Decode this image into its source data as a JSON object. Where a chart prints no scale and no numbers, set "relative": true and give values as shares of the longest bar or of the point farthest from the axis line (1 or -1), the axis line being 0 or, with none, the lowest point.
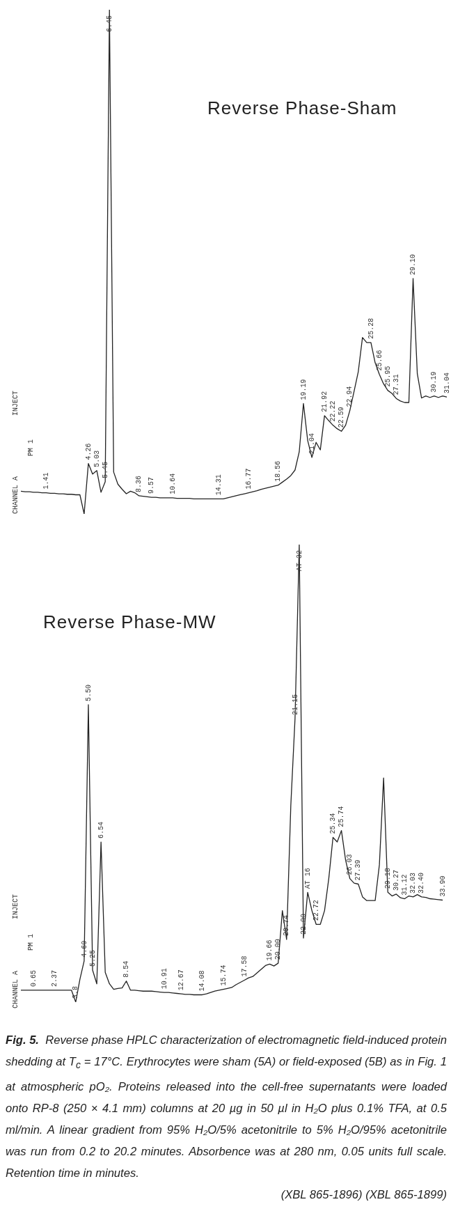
{
  "chart_data": [
    {
      "type": "line",
      "title": "Reverse Phase-Sham",
      "relative": true,
      "categories": [
        null,
        null,
        null,
        null,
        null,
        null,
        "1.41",
        null,
        null,
        null,
        null,
        null,
        null,
        null,
        null,
        null,
        "4.26",
        null,
        "5.03",
        null,
        "5.45",
        "6.45",
        null,
        null,
        null,
        null,
        null,
        null,
        "8.36",
        null,
        null,
        "9.57",
        null,
        null,
        null,
        null,
        "10.64",
        null,
        null,
        null,
        null,
        null,
        null,
        null,
        null,
        null,
        null,
        "14.31",
        null,
        null,
        null,
        null,
        null,
        null,
        "16.77",
        null,
        null,
        null,
        null,
        null,
        null,
        "18.56",
        null,
        null,
        null,
        null,
        null,
        "19.19",
        null,
        "21.04",
        null,
        null,
        "21.92",
        null,
        "22.22",
        null,
        "22.59",
        null,
        "22.94",
        null,
        null,
        null,
        null,
        "25.28",
        null,
        "25.66",
        null,
        "25.95",
        null,
        "27.31",
        null,
        null,
        null,
        "29.10",
        null,
        null,
        null,
        null,
        "30.19",
        null,
        null,
        "31.04"
      ],
      "series": [
        {
          "color": "#222222",
          "values": [
            0.045,
            0.044,
            0.044,
            0.043,
            0.043,
            0.042,
            0.042,
            0.041,
            0.041,
            0.04,
            0.04,
            0.039,
            0.039,
            0.038,
            0.038,
            0,
            0.1,
            0.079,
            0.086,
            0.043,
            0.064,
            1,
            0.083,
            0.059,
            0.049,
            0.04,
            0.045,
            0.042,
            0.036,
            0.035,
            0.034,
            0.033,
            0.033,
            0.032,
            0.032,
            0.032,
            0.032,
            0.031,
            0.031,
            0.031,
            0.031,
            0.03,
            0.03,
            0.03,
            0.03,
            0.03,
            0.03,
            0.03,
            0.03,
            0.032,
            0.034,
            0.036,
            0.038,
            0.04,
            0.042,
            0.044,
            0.046,
            0.049,
            0.051,
            0.053,
            0.055,
            0.057,
            0.063,
            0.069,
            0.076,
            0.087,
            0.123,
            0.219,
            0.146,
            0.112,
            0.142,
            0.127,
            0.195,
            0.185,
            0.176,
            0.169,
            0.164,
            0.176,
            0.205,
            0.243,
            0.282,
            0.35,
            0.34,
            0.34,
            0.3,
            0.277,
            0.258,
            0.245,
            0.239,
            0.229,
            0.224,
            0.221,
            0.221,
            0.467,
            0.278,
            0.23,
            0.234,
            0.231,
            0.234,
            0.231,
            0.234,
            0.232
          ]
        }
      ],
      "annotations": [
        "CHANNEL A",
        "PM 1",
        "INJECT"
      ]
    },
    {
      "type": "line",
      "title": "Reverse Phase-MW",
      "relative": true,
      "categories": [
        null,
        null,
        null,
        "0.65",
        null,
        null,
        null,
        null,
        "2.37",
        null,
        null,
        null,
        null,
        "3.8",
        null,
        "4.60",
        "5.50",
        "5.25",
        null,
        "6.54",
        null,
        null,
        null,
        null,
        null,
        "8.54",
        null,
        null,
        null,
        null,
        null,
        null,
        null,
        null,
        "10.91",
        null,
        null,
        null,
        "12.67",
        null,
        null,
        null,
        null,
        "14.08",
        null,
        null,
        null,
        null,
        "15.74",
        null,
        null,
        null,
        null,
        "17.58",
        null,
        null,
        null,
        null,
        null,
        "19.66",
        null,
        "20.00",
        null,
        "20.74",
        null,
        "21.15",
        "AT 32",
        "22.00",
        "AT 16",
        null,
        "22.72",
        null,
        null,
        null,
        "25.34",
        null,
        "25.74",
        null,
        "26.03",
        null,
        "27.39",
        null,
        null,
        null,
        null,
        null,
        null,
        "29.18",
        null,
        "30.27",
        null,
        "31.12",
        null,
        "32.03",
        null,
        "32.40",
        null,
        null,
        null,
        null,
        "33.90"
      ],
      "series": [
        {
          "color": "#222222",
          "values": [
            0.026,
            0.026,
            0.026,
            0.026,
            0.026,
            0.026,
            0.026,
            0.026,
            0.026,
            0.026,
            0.026,
            0.026,
            0.026,
            0,
            0.05,
            0.09,
            0.65,
            0.07,
            0.04,
            0.35,
            0.065,
            0.04,
            0.028,
            0.03,
            0.031,
            0.046,
            0.026,
            0.026,
            0.025,
            0.024,
            0.024,
            0.024,
            0.023,
            0.022,
            0.021,
            0.021,
            0.02,
            0.019,
            0.018,
            0.017,
            0.017,
            0.016,
            0.016,
            0.016,
            0.018,
            0.021,
            0.024,
            0.026,
            0.028,
            0.03,
            0.032,
            0.038,
            0.043,
            0.048,
            0.053,
            0.056,
            0.064,
            0.072,
            0.08,
            0.083,
            0.079,
            0.085,
            0.2,
            0.137,
            0.43,
            0.62,
            1,
            0.14,
            0.24,
            0.2,
            0.17,
            0.17,
            0.2,
            0.27,
            0.36,
            0.35,
            0.375,
            0.31,
            0.27,
            0.26,
            0.258,
            0.23,
            0.222,
            0.222,
            0.222,
            0.3,
            0.49,
            0.24,
            0.232,
            0.236,
            0.228,
            0.226,
            0.232,
            0.23,
            0.235,
            0.23,
            0.229,
            0.226,
            0.225,
            0.224,
            0.223
          ]
        }
      ],
      "annotations": [
        "CHANNEL A",
        "PM 1",
        "INJECT"
      ]
    },
    {
      "type": "other",
      "title": "Fig. 5.",
      "annotations": [
        "Reverse phase HPLC characterization of electromagnetic field-induced protein shedding at T$_{c}$ = 17°C. Erythrocytes were sham (5A) or field-exposed (5B) as in Fig. 1 at atmospheric pO₂. Proteins released into the cell-free supernatants were loaded onto RP-8 (250 × 4.1 mm) columns at 20 µg in 50 µl in H₂O plus 0.1% TFA, at 0.5 ml/min. A linear gradient from 95% H₂O/5% acetonitrile to 5% H₂O/95% acetonitrile was run from 0.2 to 20.2 minutes. Absorbence was at 280 nm, 0.05 units full scale. Retention time in minutes.",
        "(XBL 865-1896) (XBL 865-1899)"
      ]
    }
  ]
}
